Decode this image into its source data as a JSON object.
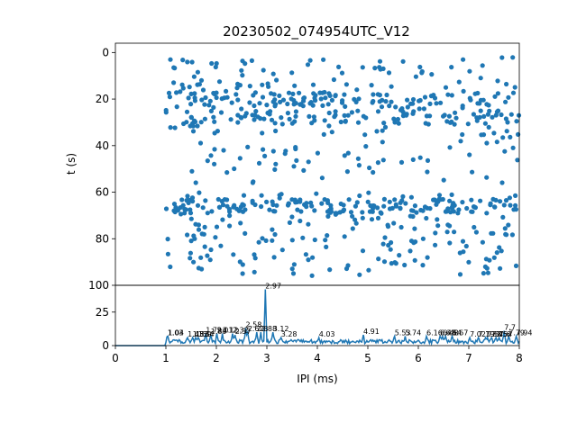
{
  "chart_data": [
    {
      "type": "scatter",
      "title": "20230502_074954UTC_V12",
      "xlabel": "",
      "ylabel": "t (s)",
      "xlim": [
        0,
        8
      ],
      "ylim": [
        100,
        -4
      ],
      "y_inverted": true,
      "yticks": [
        0,
        20,
        40,
        60,
        80,
        100
      ],
      "color": "#1f77b4",
      "bands": [
        {
          "t_range": [
            2,
            36
          ],
          "ipi_range": [
            1.0,
            8.0
          ],
          "density": "high",
          "dense_rows": [
            20,
            28
          ]
        },
        {
          "t_range": [
            36,
            56
          ],
          "ipi_range": [
            1.5,
            8.0
          ],
          "density": "sparse"
        },
        {
          "t_range": [
            60,
            96
          ],
          "ipi_range": [
            1.0,
            8.0
          ],
          "density": "high",
          "dense_rows": [
            66
          ]
        }
      ]
    },
    {
      "type": "line",
      "xlabel": "IPI (ms)",
      "ylabel": "",
      "xlim": [
        0,
        8
      ],
      "ylim": [
        0,
        45
      ],
      "xticks": [
        0,
        1,
        2,
        3,
        4,
        5,
        6,
        7,
        8
      ],
      "yticks": [
        0,
        25
      ],
      "color": "#1f77b4",
      "peaks": [
        {
          "x": 1.03,
          "y": 7,
          "label": "1.03"
        },
        {
          "x": 1.04,
          "y": 7,
          "label": "1.04"
        },
        {
          "x": 1.43,
          "y": 6,
          "label": "1.43"
        },
        {
          "x": 1.53,
          "y": 6,
          "label": "1.53"
        },
        {
          "x": 1.59,
          "y": 6,
          "label": "1.59"
        },
        {
          "x": 1.64,
          "y": 6,
          "label": "1.64"
        },
        {
          "x": 1.79,
          "y": 9,
          "label": "1.79"
        },
        {
          "x": 1.89,
          "y": 8,
          "label": "1.89"
        },
        {
          "x": 2.01,
          "y": 9,
          "label": "2.01"
        },
        {
          "x": 2.12,
          "y": 9,
          "label": "2.12"
        },
        {
          "x": 2.32,
          "y": 9,
          "label": "2.32"
        },
        {
          "x": 2.37,
          "y": 8,
          "label": "2.37"
        },
        {
          "x": 2.58,
          "y": 13,
          "label": "2.58"
        },
        {
          "x": 2.62,
          "y": 10,
          "label": "2.62"
        },
        {
          "x": 2.8,
          "y": 10,
          "label": "2.8"
        },
        {
          "x": 2.88,
          "y": 10,
          "label": "2.88"
        },
        {
          "x": 2.97,
          "y": 42,
          "label": "2.97"
        },
        {
          "x": 3.12,
          "y": 10,
          "label": "3.12"
        },
        {
          "x": 3.28,
          "y": 6,
          "label": "3.28"
        },
        {
          "x": 4.03,
          "y": 6,
          "label": "4.03"
        },
        {
          "x": 4.91,
          "y": 8,
          "label": "4.91"
        },
        {
          "x": 5.53,
          "y": 7,
          "label": "5.53"
        },
        {
          "x": 5.74,
          "y": 7,
          "label": "5.74"
        },
        {
          "x": 6.16,
          "y": 7,
          "label": "6.16"
        },
        {
          "x": 6.43,
          "y": 7,
          "label": "6.43"
        },
        {
          "x": 6.48,
          "y": 7,
          "label": "6.48"
        },
        {
          "x": 6.54,
          "y": 7,
          "label": "6.54"
        },
        {
          "x": 6.67,
          "y": 7,
          "label": "6.67"
        },
        {
          "x": 7.02,
          "y": 6,
          "label": "7.02"
        },
        {
          "x": 7.19,
          "y": 6,
          "label": "7.19"
        },
        {
          "x": 7.33,
          "y": 6,
          "label": "7.33"
        },
        {
          "x": 7.37,
          "y": 6,
          "label": "7.37"
        },
        {
          "x": 7.45,
          "y": 6,
          "label": "7.45"
        },
        {
          "x": 7.54,
          "y": 6,
          "label": "7.54"
        },
        {
          "x": 7.6,
          "y": 6,
          "label": "7.6"
        },
        {
          "x": 7.7,
          "y": 11,
          "label": "7.7"
        },
        {
          "x": 7.79,
          "y": 7,
          "label": "7.79"
        },
        {
          "x": 7.94,
          "y": 7,
          "label": "7.94"
        }
      ]
    }
  ]
}
